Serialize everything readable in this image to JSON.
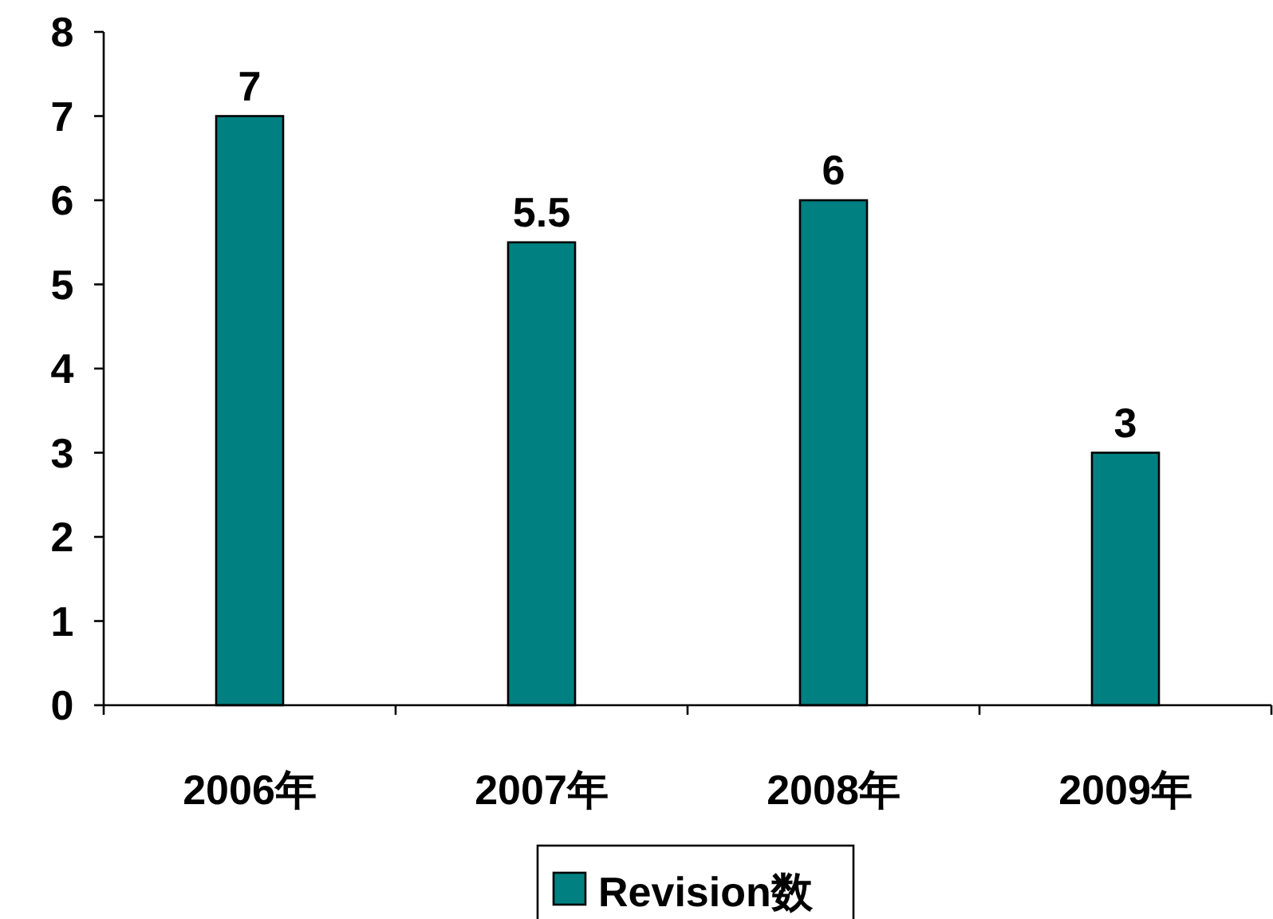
{
  "chart_data": {
    "type": "bar",
    "categories": [
      "2006年",
      "2007年",
      "2008年",
      "2009年"
    ],
    "series": [
      {
        "name": "Revision数",
        "color": "#008080",
        "values": [
          7,
          5.5,
          6,
          3
        ]
      }
    ],
    "ylim": [
      0,
      8
    ],
    "yticks": [
      0,
      1,
      2,
      3,
      4,
      5,
      6,
      7,
      8
    ],
    "data_labels": true,
    "legend": "bottom",
    "grid": false
  }
}
